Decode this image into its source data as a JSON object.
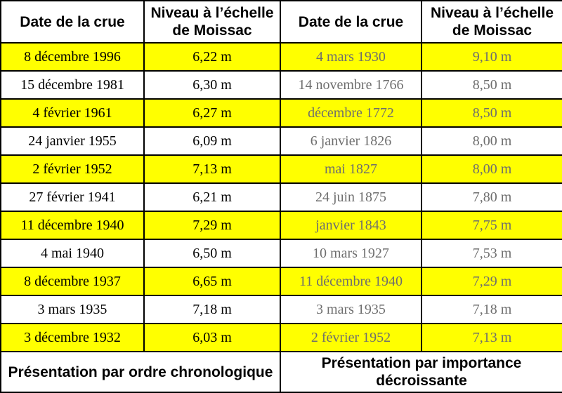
{
  "headers": [
    "Date de la crue",
    "Niveau à l’échelle de Moissac",
    "Date de la crue",
    "Niveau à l’échelle de Moissac"
  ],
  "colors": {
    "highlight": "#ffff00",
    "border": "#000000",
    "right_text": "#6e6e6e"
  },
  "chronological": [
    {
      "date": "8 décembre 1996",
      "level": "6,22 m"
    },
    {
      "date": "15 décembre 1981",
      "level": "6,30 m"
    },
    {
      "date": "4 février 1961",
      "level": "6,27 m"
    },
    {
      "date": "24 janvier 1955",
      "level": "6,09 m"
    },
    {
      "date": "2 février 1952",
      "level": "7,13 m"
    },
    {
      "date": "27 février 1941",
      "level": "6,21 m"
    },
    {
      "date": "11 décembre 1940",
      "level": "7,29 m"
    },
    {
      "date": "4 mai 1940",
      "level": "6,50 m"
    },
    {
      "date": "8 décembre 1937",
      "level": "6,65 m"
    },
    {
      "date": "3 mars 1935",
      "level": "7,18 m"
    },
    {
      "date": "3 décembre 1932",
      "level": "6,03 m"
    }
  ],
  "by_importance": [
    {
      "date": "4 mars 1930",
      "level": "9,10 m"
    },
    {
      "date": "14 novembre 1766",
      "level": "8,50 m"
    },
    {
      "date": "décembre 1772",
      "level": "8,50 m"
    },
    {
      "date": "6 janvier 1826",
      "level": "8,00 m"
    },
    {
      "date": "mai 1827",
      "level": "8,00 m"
    },
    {
      "date": "24 juin 1875",
      "level": "7,80 m"
    },
    {
      "date": "janvier 1843",
      "level": "7,75 m"
    },
    {
      "date": "10 mars 1927",
      "level": "7,53 m"
    },
    {
      "date": "11 décembre 1940",
      "level": "7,29 m"
    },
    {
      "date": "3 mars 1935",
      "level": "7,18 m"
    },
    {
      "date": "2 février 1952",
      "level": "7,13 m"
    }
  ],
  "footers": {
    "left": "Présentation par ordre chronologique",
    "right": "Présentation par importance décroissante"
  }
}
